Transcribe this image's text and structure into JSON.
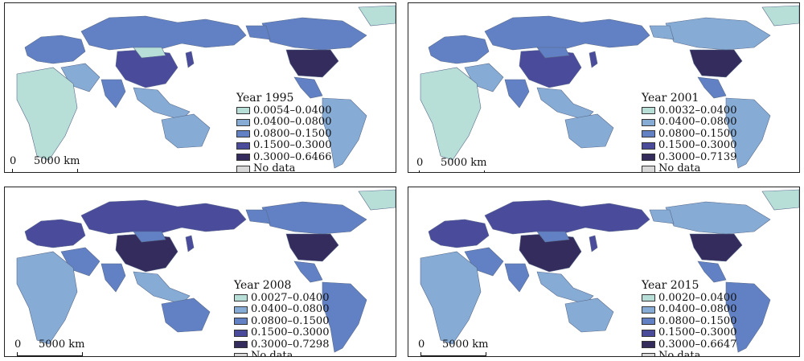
{
  "panels": [
    {
      "year_label": "Year 1995",
      "ranges": [
        "0.0054–0.0400",
        "0.0400–0.0800",
        "0.0800–0.1500",
        "0.1500–0.3000",
        "0.3000–0.6466"
      ],
      "no_data": "No data"
    },
    {
      "year_label": "Year 2001",
      "ranges": [
        "0.0032–0.0400",
        "0.0400–0.0800",
        "0.0800–0.1500",
        "0.1500–0.3000",
        "0.3000–0.7139"
      ],
      "no_data": "No data"
    },
    {
      "year_label": "Year 2008",
      "ranges": [
        "0.0027–0.0400",
        "0.0400–0.0800",
        "0.0800–0.1500",
        "0.1500–0.3000",
        "0.3000–0.7298"
      ],
      "no_data": "No data"
    },
    {
      "year_label": "Year 2015",
      "ranges": [
        "0.0020–0.0400",
        "0.0400–0.0800",
        "0.0800–0.1500",
        "0.1500–0.3000",
        "0.3000–0.6647"
      ],
      "no_data": "No data"
    }
  ],
  "scale": {
    "zero": "0",
    "distance": "5000 km"
  },
  "class_colors": [
    "#b7dfd8",
    "#86acd6",
    "#6181c4",
    "#4b4b9c",
    "#332c5c"
  ],
  "no_data_color": "#d9d9d9"
}
